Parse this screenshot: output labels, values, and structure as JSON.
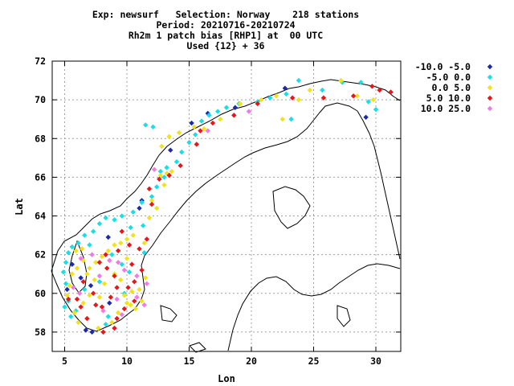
{
  "chart_data": {
    "type": "scatter",
    "title_lines": [
      "Exp: newsurf   Selection: Norway    218 stations",
      "Period: 20210716-20210724",
      "Rh2m 1 patch bias [RHP1] at  00 UTC",
      "Used {12} + 36"
    ],
    "xlabel": "Lon",
    "ylabel": "Lat",
    "xlim": [
      4,
      32
    ],
    "ylim": [
      57,
      72
    ],
    "xticks": [
      5,
      10,
      15,
      20,
      25,
      30
    ],
    "yticks": [
      58,
      60,
      62,
      64,
      66,
      68,
      70,
      72
    ],
    "yticklabels": [
      "58",
      "60",
      "62",
      "64",
      "66",
      "68",
      "70",
      "72"
    ],
    "grid": true,
    "legend_position": "right",
    "series": [
      {
        "name": "-10.0 -5.0",
        "color": "#1c2aa8",
        "points": [
          [
            6.7,
            58.1
          ],
          [
            7.2,
            58.0
          ],
          [
            5.6,
            61.5
          ],
          [
            6.3,
            60.8
          ],
          [
            7.1,
            60.4
          ],
          [
            5.2,
            60.2
          ],
          [
            8.6,
            59.5
          ],
          [
            11.2,
            64.8
          ],
          [
            11.0,
            64.4
          ],
          [
            13.5,
            67.4
          ],
          [
            15.2,
            68.8
          ],
          [
            18.7,
            69.6
          ],
          [
            22.7,
            70.6
          ],
          [
            29.2,
            69.1
          ],
          [
            16.5,
            69.3
          ],
          [
            8.5,
            62.9
          ]
        ]
      },
      {
        "name": "-5.0 0.0",
        "color": "#17dfe6",
        "points": [
          [
            5.0,
            59.3
          ],
          [
            5.3,
            59.6
          ],
          [
            5.5,
            58.8
          ],
          [
            5.9,
            59.1
          ],
          [
            5.1,
            60.5
          ],
          [
            4.9,
            61.1
          ],
          [
            5.1,
            61.6
          ],
          [
            5.3,
            62.1
          ],
          [
            5.6,
            62.4
          ],
          [
            6.1,
            62.6
          ],
          [
            6.6,
            63.0
          ],
          [
            7.3,
            63.2
          ],
          [
            7.8,
            63.6
          ],
          [
            8.3,
            63.9
          ],
          [
            9.0,
            63.8
          ],
          [
            9.6,
            64.0
          ],
          [
            10.5,
            64.2
          ],
          [
            11.2,
            64.7
          ],
          [
            12.0,
            65.0
          ],
          [
            12.4,
            65.5
          ],
          [
            13.0,
            66.0
          ],
          [
            13.2,
            66.5
          ],
          [
            14.0,
            66.8
          ],
          [
            14.4,
            67.3
          ],
          [
            15.0,
            67.8
          ],
          [
            15.5,
            68.2
          ],
          [
            16.0,
            68.9
          ],
          [
            16.6,
            69.2
          ],
          [
            17.3,
            69.4
          ],
          [
            18.0,
            69.6
          ],
          [
            19.0,
            69.8
          ],
          [
            20.5,
            69.9
          ],
          [
            21.5,
            70.1
          ],
          [
            22.8,
            70.3
          ],
          [
            23.8,
            71.0
          ],
          [
            25.7,
            70.5
          ],
          [
            27.3,
            70.9
          ],
          [
            28.8,
            70.9
          ],
          [
            29.4,
            69.9
          ],
          [
            30.0,
            69.5
          ],
          [
            10.3,
            63.4
          ],
          [
            11.3,
            63.5
          ],
          [
            11.4,
            62.1
          ],
          [
            10.2,
            61.1
          ],
          [
            9.6,
            61.5
          ],
          [
            8.8,
            62.0
          ],
          [
            11.5,
            68.7
          ],
          [
            12.1,
            68.6
          ],
          [
            9.8,
            60.0
          ],
          [
            7.8,
            60.6
          ],
          [
            6.6,
            60.2
          ],
          [
            8.5,
            58.8
          ],
          [
            8.3,
            58.4
          ],
          [
            7.0,
            62.5
          ],
          [
            12.7,
            66.3
          ],
          [
            23.2,
            69.0
          ]
        ]
      },
      {
        "name": "0.0 5.0",
        "color": "#f2e21a",
        "points": [
          [
            5.2,
            59.9
          ],
          [
            5.4,
            60.4
          ],
          [
            5.6,
            61.0
          ],
          [
            6.0,
            61.3
          ],
          [
            6.5,
            61.7
          ],
          [
            7.0,
            61.3
          ],
          [
            7.5,
            61.6
          ],
          [
            8.0,
            61.9
          ],
          [
            8.5,
            62.2
          ],
          [
            9.0,
            62.5
          ],
          [
            9.5,
            62.6
          ],
          [
            10.0,
            62.8
          ],
          [
            10.5,
            63.0
          ],
          [
            9.0,
            61.0
          ],
          [
            9.5,
            60.7
          ],
          [
            10.0,
            61.8
          ],
          [
            10.4,
            60.1
          ],
          [
            11.0,
            60.2
          ],
          [
            11.2,
            59.6
          ],
          [
            10.7,
            59.2
          ],
          [
            10.0,
            59.5
          ],
          [
            9.3,
            59.0
          ],
          [
            8.8,
            58.5
          ],
          [
            7.7,
            58.2
          ],
          [
            6.1,
            58.5
          ],
          [
            5.8,
            59.0
          ],
          [
            6.5,
            59.5
          ],
          [
            7.0,
            59.9
          ],
          [
            7.8,
            59.8
          ],
          [
            8.2,
            60.5
          ],
          [
            7.4,
            60.7
          ],
          [
            6.8,
            61.0
          ],
          [
            11.4,
            62.6
          ],
          [
            11.8,
            63.9
          ],
          [
            12.4,
            64.4
          ],
          [
            12.0,
            64.8
          ],
          [
            13.0,
            65.6
          ],
          [
            12.7,
            66.1
          ],
          [
            13.2,
            66.2
          ],
          [
            13.6,
            66.3
          ],
          [
            12.8,
            67.6
          ],
          [
            13.4,
            68.1
          ],
          [
            14.2,
            68.3
          ],
          [
            15.4,
            68.6
          ],
          [
            16.2,
            68.5
          ],
          [
            17.5,
            69.0
          ],
          [
            19.1,
            69.8
          ],
          [
            20.8,
            70.0
          ],
          [
            22.0,
            70.2
          ],
          [
            23.8,
            70.0
          ],
          [
            24.7,
            70.5
          ],
          [
            27.2,
            71.0
          ],
          [
            29.8,
            70.0
          ],
          [
            22.5,
            69.0
          ],
          [
            28.5,
            70.2
          ],
          [
            5.9,
            62.2
          ],
          [
            6.4,
            62.3
          ],
          [
            9.8,
            59.9
          ],
          [
            10.3,
            59.4
          ],
          [
            11.5,
            60.8
          ]
        ]
      },
      {
        "name": "5.0 10.0",
        "color": "#e8151a",
        "points": [
          [
            5.3,
            59.7
          ],
          [
            6.0,
            59.7
          ],
          [
            6.5,
            60.6
          ],
          [
            7.3,
            60.0
          ],
          [
            8.0,
            59.3
          ],
          [
            8.7,
            59.8
          ],
          [
            9.2,
            60.3
          ],
          [
            9.0,
            60.9
          ],
          [
            8.4,
            61.3
          ],
          [
            7.8,
            61.6
          ],
          [
            8.3,
            62.0
          ],
          [
            9.3,
            62.2
          ],
          [
            10.2,
            62.5
          ],
          [
            11.0,
            62.3
          ],
          [
            10.4,
            61.5
          ],
          [
            11.2,
            61.2
          ],
          [
            10.6,
            60.6
          ],
          [
            10.1,
            60.3
          ],
          [
            10.6,
            59.6
          ],
          [
            9.8,
            59.2
          ],
          [
            9.2,
            58.7
          ],
          [
            8.1,
            58.0
          ],
          [
            9.0,
            58.2
          ],
          [
            6.3,
            59.3
          ],
          [
            7.5,
            59.4
          ],
          [
            6.8,
            58.7
          ],
          [
            12.0,
            64.6
          ],
          [
            11.8,
            65.4
          ],
          [
            12.6,
            65.9
          ],
          [
            13.4,
            66.1
          ],
          [
            14.3,
            66.6
          ],
          [
            15.6,
            67.7
          ],
          [
            15.9,
            68.4
          ],
          [
            16.9,
            68.8
          ],
          [
            20.5,
            69.8
          ],
          [
            23.3,
            70.1
          ],
          [
            25.8,
            70.1
          ],
          [
            28.2,
            70.2
          ],
          [
            29.7,
            70.7
          ],
          [
            30.3,
            70.5
          ],
          [
            31.2,
            70.4
          ],
          [
            18.6,
            69.2
          ],
          [
            11.6,
            62.8
          ],
          [
            9.6,
            63.2
          ]
        ]
      },
      {
        "name": "10.0 25.0",
        "color": "#f07ae8",
        "points": [
          [
            5.7,
            60.3
          ],
          [
            6.2,
            60.0
          ],
          [
            7.8,
            60.9
          ],
          [
            8.6,
            61.7
          ],
          [
            9.3,
            61.6
          ],
          [
            9.8,
            61.2
          ],
          [
            10.8,
            60.9
          ],
          [
            11.6,
            60.5
          ],
          [
            6.3,
            61.8
          ],
          [
            9.2,
            59.7
          ],
          [
            9.6,
            58.9
          ],
          [
            10.8,
            59.8
          ],
          [
            11.4,
            59.4
          ],
          [
            8.1,
            59.1
          ],
          [
            16.5,
            68.4
          ],
          [
            19.8,
            69.4
          ],
          [
            12.2,
            66.4
          ],
          [
            7.2,
            62.0
          ]
        ]
      }
    ]
  }
}
